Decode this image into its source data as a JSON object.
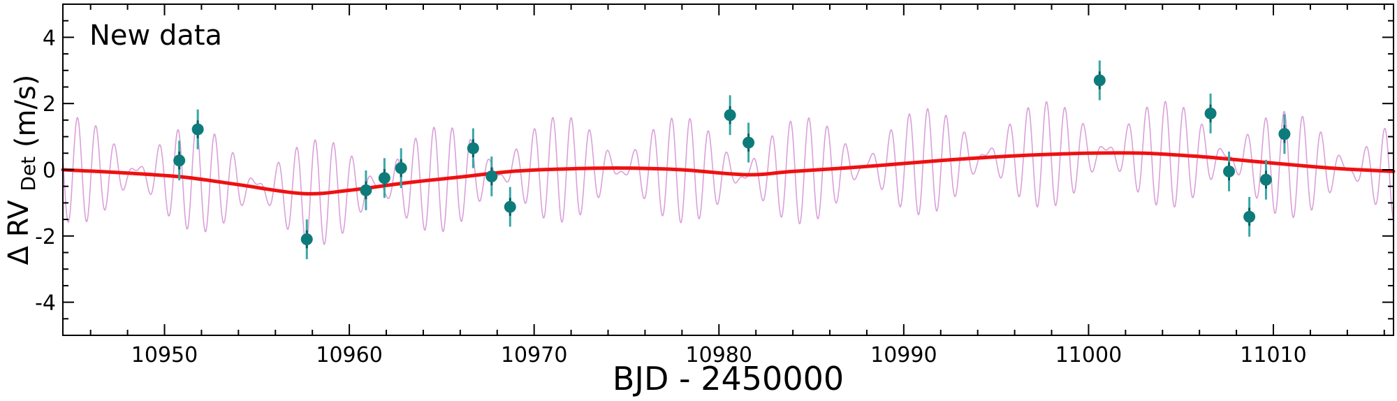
{
  "chart_data": {
    "type": "scatter",
    "annotation": "New data",
    "xlabel": "BJD - 2450000",
    "ylabel_main": "Δ RV",
    "ylabel_sub": "Det",
    "ylabel_unit": "(m/s)",
    "xlim": [
      10944.5,
      11016.5
    ],
    "ylim": [
      -5,
      5
    ],
    "x_ticks": [
      10950,
      10960,
      10970,
      10980,
      10990,
      11000,
      11010
    ],
    "y_ticks": [
      -4,
      -2,
      0,
      2,
      4
    ],
    "y_tick_labels": [
      "-4",
      "-2",
      "0",
      "2",
      "4"
    ],
    "x_minor_step": 2,
    "y_minor_step": 0.5,
    "grid": false,
    "colors": {
      "points": "#0e7b7b",
      "errorbars": "#3aa6a6",
      "smooth_model": "#ee1111",
      "oscillating_model": "#d9a0d9"
    },
    "points": [
      {
        "x": 10950.8,
        "y": 0.28,
        "err": 0.6
      },
      {
        "x": 10951.8,
        "y": 1.22,
        "err": 0.6
      },
      {
        "x": 10957.7,
        "y": -2.1,
        "err": 0.6
      },
      {
        "x": 10960.9,
        "y": -0.62,
        "err": 0.6
      },
      {
        "x": 10961.9,
        "y": -0.25,
        "err": 0.6
      },
      {
        "x": 10962.8,
        "y": 0.05,
        "err": 0.6
      },
      {
        "x": 10966.7,
        "y": 0.65,
        "err": 0.6
      },
      {
        "x": 10967.7,
        "y": -0.2,
        "err": 0.6
      },
      {
        "x": 10968.7,
        "y": -1.12,
        "err": 0.6
      },
      {
        "x": 10980.6,
        "y": 1.65,
        "err": 0.6
      },
      {
        "x": 10981.6,
        "y": 0.82,
        "err": 0.6
      },
      {
        "x": 11000.6,
        "y": 2.7,
        "err": 0.6
      },
      {
        "x": 11006.6,
        "y": 1.7,
        "err": 0.6
      },
      {
        "x": 11007.6,
        "y": -0.05,
        "err": 0.6
      },
      {
        "x": 11008.7,
        "y": -1.42,
        "err": 0.6
      },
      {
        "x": 11009.6,
        "y": -0.3,
        "err": 0.6
      },
      {
        "x": 11010.6,
        "y": 1.08,
        "err": 0.6
      }
    ],
    "smooth_model": [
      [
        10944.5,
        0.0
      ],
      [
        10948,
        -0.1
      ],
      [
        10951,
        -0.22
      ],
      [
        10954,
        -0.45
      ],
      [
        10957.5,
        -0.72
      ],
      [
        10960,
        -0.62
      ],
      [
        10963,
        -0.4
      ],
      [
        10966,
        -0.22
      ],
      [
        10969,
        -0.04
      ],
      [
        10972,
        0.03
      ],
      [
        10975,
        0.05
      ],
      [
        10978,
        0.0
      ],
      [
        10981.5,
        -0.15
      ],
      [
        10984,
        -0.05
      ],
      [
        10988,
        0.1
      ],
      [
        10992,
        0.28
      ],
      [
        10996,
        0.42
      ],
      [
        11000,
        0.5
      ],
      [
        11003,
        0.5
      ],
      [
        11006,
        0.4
      ],
      [
        11009,
        0.25
      ],
      [
        11012,
        0.1
      ],
      [
        11014,
        0.02
      ],
      [
        11016.5,
        -0.05
      ]
    ]
  }
}
